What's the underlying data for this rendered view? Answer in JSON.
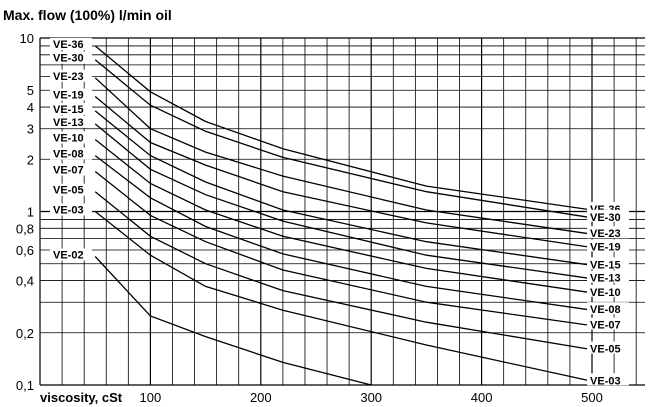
{
  "chart_data": {
    "type": "line",
    "title": "Max. flow (100%) l/min oil",
    "xlabel": "viscosity, cSt",
    "ylabel": "",
    "x_scale": "linear",
    "y_scale": "log",
    "xlim": [
      0,
      550
    ],
    "ylim": [
      0.1,
      10
    ],
    "x_ticks": [
      100,
      200,
      300,
      400,
      500
    ],
    "x_tick_labels": [
      "100",
      "200",
      "300",
      "400",
      "500"
    ],
    "y_ticks": [
      0.1,
      0.2,
      0.4,
      0.6,
      0.8,
      1,
      2,
      3,
      4,
      5,
      10
    ],
    "y_tick_labels": [
      "0,1",
      "0,2",
      "0,4",
      "0,6",
      "0,8",
      "1",
      "2",
      "3",
      "4",
      "5",
      "10"
    ],
    "grid": true,
    "series": [
      {
        "name": "VE-36",
        "x": [
          50,
          100,
          150,
          220,
          350,
          500
        ],
        "y": [
          9.0,
          4.9,
          3.3,
          2.3,
          1.4,
          1.02
        ]
      },
      {
        "name": "VE-30",
        "x": [
          50,
          100,
          150,
          220,
          350,
          500
        ],
        "y": [
          7.5,
          4.1,
          2.9,
          2.05,
          1.3,
          0.92
        ]
      },
      {
        "name": "VE-23",
        "x": [
          50,
          100,
          150,
          220,
          350,
          500
        ],
        "y": [
          5.9,
          3.0,
          2.2,
          1.6,
          1.02,
          0.74
        ]
      },
      {
        "name": "VE-19",
        "x": [
          50,
          100,
          150,
          220,
          350,
          500
        ],
        "y": [
          4.6,
          2.5,
          1.85,
          1.3,
          0.86,
          0.62
        ]
      },
      {
        "name": "VE-15",
        "x": [
          50,
          100,
          150,
          220,
          350,
          500
        ],
        "y": [
          3.8,
          2.1,
          1.48,
          1.02,
          0.67,
          0.49
        ]
      },
      {
        "name": "VE-13",
        "x": [
          50,
          100,
          150,
          220,
          350,
          500
        ],
        "y": [
          3.2,
          1.75,
          1.25,
          0.88,
          0.56,
          0.41
        ]
      },
      {
        "name": "VE-10",
        "x": [
          50,
          100,
          150,
          220,
          350,
          500
        ],
        "y": [
          2.6,
          1.45,
          1.02,
          0.72,
          0.47,
          0.34
        ]
      },
      {
        "name": "VE-08",
        "x": [
          50,
          100,
          150,
          220,
          350,
          500
        ],
        "y": [
          2.1,
          1.2,
          0.82,
          0.57,
          0.37,
          0.27
        ]
      },
      {
        "name": "VE-07",
        "x": [
          50,
          100,
          150,
          220,
          350,
          500
        ],
        "y": [
          1.7,
          0.95,
          0.67,
          0.46,
          0.3,
          0.22
        ]
      },
      {
        "name": "VE-05",
        "x": [
          50,
          100,
          150,
          220,
          350,
          500
        ],
        "y": [
          1.3,
          0.72,
          0.5,
          0.35,
          0.23,
          0.16
        ]
      },
      {
        "name": "VE-03",
        "x": [
          50,
          100,
          150,
          220,
          350,
          500
        ],
        "y": [
          1.0,
          0.56,
          0.37,
          0.27,
          0.17,
          0.105
        ]
      },
      {
        "name": "VE-02",
        "x": [
          50,
          100,
          150,
          220,
          300
        ],
        "y": [
          0.55,
          0.25,
          0.19,
          0.135,
          0.1
        ]
      }
    ],
    "left_labels": [
      "VE-36",
      "VE-30",
      "VE-23",
      "VE-19",
      "VE-15",
      "VE-13",
      "VE-10",
      "VE-08",
      "VE-07",
      "VE-05",
      "VE-03",
      "VE-02"
    ],
    "right_labels": [
      "VE-36",
      "VE-30",
      "VE-23",
      "VE-19",
      "VE-15",
      "VE-13",
      "VE-10",
      "VE-08",
      "VE-07",
      "VE-05",
      "VE-03"
    ]
  }
}
